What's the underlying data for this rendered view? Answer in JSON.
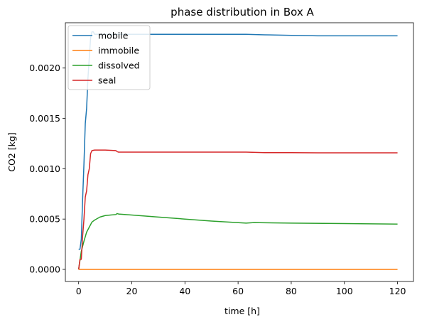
{
  "chart_data": {
    "type": "line",
    "title": "phase distribution in Box A",
    "xlabel": "time [h]",
    "ylabel": "CO2 [kg]",
    "xlim": [
      -5,
      126
    ],
    "ylim": [
      -0.00012,
      0.00245
    ],
    "x_ticks": [
      0,
      20,
      40,
      60,
      80,
      100,
      120
    ],
    "x_tick_labels": [
      "0",
      "20",
      "40",
      "60",
      "80",
      "100",
      "120"
    ],
    "y_ticks": [
      0,
      0.0005,
      0.001,
      0.0015,
      0.002
    ],
    "y_tick_labels": [
      "0.0000",
      "0.0005",
      "0.0010",
      "0.0015",
      "0.0020"
    ],
    "legend_position": "upper-left",
    "series": [
      {
        "name": "mobile",
        "color": "#1f77b4",
        "x": [
          0,
          0.5,
          1,
          1.5,
          2,
          2.5,
          3,
          3.5,
          4,
          4.5,
          5,
          5.5,
          6,
          10,
          14,
          20,
          40,
          63,
          70,
          80,
          90,
          100,
          110,
          120
        ],
        "y": [
          0.0002,
          0.0002,
          0.0003,
          0.0007,
          0.00105,
          0.00145,
          0.0016,
          0.0019,
          0.0021,
          0.0023,
          0.00236,
          0.00236,
          0.002335,
          0.002335,
          0.002335,
          0.002335,
          0.002335,
          0.002335,
          0.00233,
          0.002325,
          0.00232,
          0.00232,
          0.00232,
          0.00232
        ]
      },
      {
        "name": "immobile",
        "color": "#ff7f0e",
        "x": [
          0,
          120
        ],
        "y": [
          0,
          0
        ]
      },
      {
        "name": "dissolved",
        "color": "#2ca02c",
        "x": [
          0,
          1,
          2,
          3,
          4,
          5,
          6,
          8,
          10,
          12,
          14,
          14.5,
          15,
          20,
          30,
          40,
          50,
          63,
          66,
          80,
          100,
          120
        ],
        "y": [
          0.0,
          0.00018,
          0.00028,
          0.00037,
          0.00042,
          0.00047,
          0.00049,
          0.00052,
          0.000535,
          0.00054,
          0.000545,
          0.000555,
          0.00055,
          0.00054,
          0.00052,
          0.0005,
          0.00048,
          0.00046,
          0.000465,
          0.00046,
          0.000455,
          0.00045
        ]
      },
      {
        "name": "seal",
        "color": "#d62728",
        "x": [
          0,
          0.5,
          1,
          1.5,
          2,
          2.5,
          3,
          3.5,
          4,
          4.5,
          5,
          6,
          10,
          14,
          14.5,
          15,
          20,
          40,
          63,
          70,
          80,
          90,
          100,
          120
        ],
        "y": [
          0.0,
          0.0001,
          0.0001,
          0.00033,
          0.0005,
          0.00072,
          0.00078,
          0.00094,
          0.001,
          0.00115,
          0.00118,
          0.001185,
          0.001185,
          0.00118,
          0.00117,
          0.001165,
          0.001165,
          0.001165,
          0.001165,
          0.00116,
          0.00116,
          0.001158,
          0.001158,
          0.001158
        ]
      }
    ]
  }
}
